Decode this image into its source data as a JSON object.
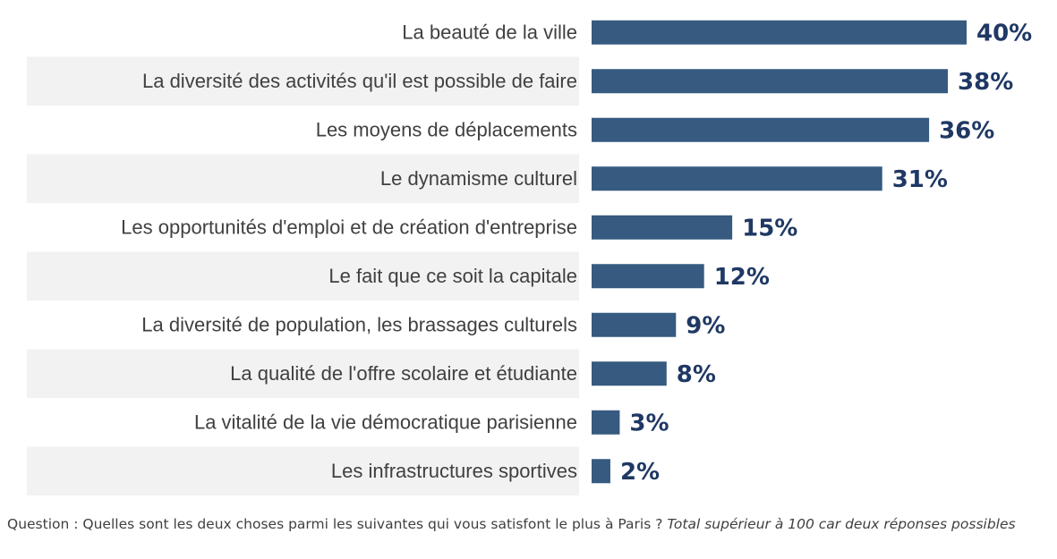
{
  "chart_data": {
    "type": "bar",
    "orientation": "horizontal",
    "categories": [
      "La beauté de la ville",
      "La diversité des activités qu'il est possible de faire",
      "Les moyens de déplacements",
      "Le dynamisme culturel",
      "Les opportunités d'emploi et de création d'entreprise",
      "Le fait que ce soit la capitale",
      "La diversité de population, les brassages culturels",
      "La qualité de l'offre scolaire et étudiante",
      "La vitalité de la vie démocratique parisienne",
      "Les infrastructures sportives"
    ],
    "values": [
      40,
      38,
      36,
      31,
      15,
      12,
      9,
      8,
      3,
      2
    ],
    "value_labels": [
      "40%",
      "38%",
      "36%",
      "31%",
      "15%",
      "12%",
      "9%",
      "8%",
      "3%",
      "2%"
    ],
    "xlim": [
      0,
      40
    ],
    "grid": false,
    "colors": {
      "bar": "#365a80",
      "value_label": "#1f3864",
      "category_label": "#404040",
      "band": "#f2f2f2"
    }
  },
  "footnote": {
    "question": "Question : Quelles sont les deux choses parmi les suivantes qui vous satisfont le plus à Paris ? ",
    "note": "Total supérieur à 100 car deux réponses possibles"
  }
}
